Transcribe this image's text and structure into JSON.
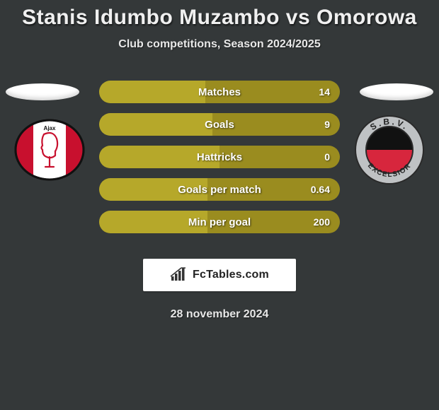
{
  "title": "Stanis Idumbo Muzambo vs Omorowa",
  "subtitle": "Club competitions, Season 2024/2025",
  "date": "28 november 2024",
  "fctables_label": "FcTables.com",
  "colors": {
    "row_bg": "#9a8c1f",
    "row_fill": "#b6a82a",
    "page_bg": "#343839"
  },
  "stats": [
    {
      "label": "Matches",
      "value": "14",
      "fill_pct": 44
    },
    {
      "label": "Goals",
      "value": "9",
      "fill_pct": 47
    },
    {
      "label": "Hattricks",
      "value": "0",
      "fill_pct": 50
    },
    {
      "label": "Goals per match",
      "value": "0.64",
      "fill_pct": 45
    },
    {
      "label": "Min per goal",
      "value": "200",
      "fill_pct": 45
    }
  ],
  "left_club": {
    "name": "Ajax",
    "crest": {
      "outer_stroke": "#111111",
      "side_fill": "#c8102e",
      "center_fill": "#ffffff",
      "head_stroke": "#c8102e"
    }
  },
  "right_club": {
    "name": "SBV Excelsior",
    "crest": {
      "ring_fill": "#bfc2c4",
      "ring_stroke": "#2a2a2a",
      "top_fill": "#111111",
      "bottom_fill": "#d7263d",
      "text": "S.B.V.",
      "text2": "EXCELSIOR"
    }
  }
}
